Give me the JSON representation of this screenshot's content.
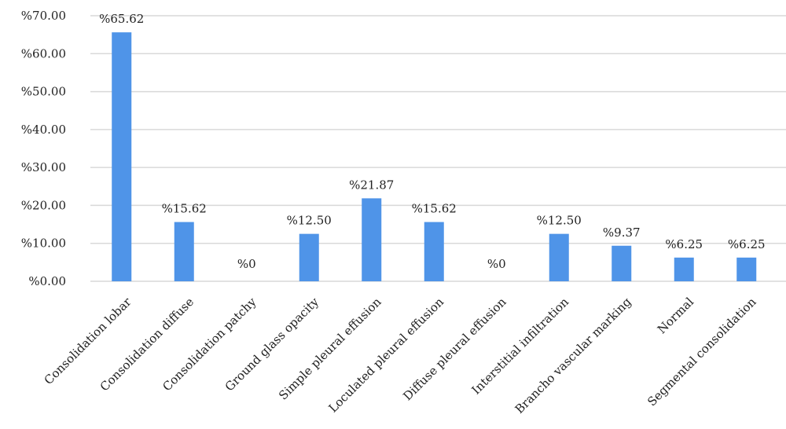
{
  "chart_data": {
    "type": "bar",
    "categories": [
      "Consolidation lobar",
      "Consolidation  diffuse",
      "Consolidation  patchy",
      "Ground glass opacity",
      "Simple pleural effusion",
      "Loculated pleural effusion",
      "Diffuse pleural effusion",
      "Interstitial infiltration",
      "Brancho vascular marking",
      "Normal",
      "Segmental consolidation"
    ],
    "values": [
      65.62,
      15.62,
      0,
      12.5,
      21.87,
      15.62,
      0,
      12.5,
      9.37,
      6.25,
      6.25
    ],
    "data_labels": [
      "%65.62",
      "%15.62",
      "%0",
      "%12.50",
      "%21.87",
      "%15.62",
      "%0",
      "%12.50",
      "%9.37",
      "%6.25",
      "%6.25"
    ],
    "y_ticks": [
      0,
      10,
      20,
      30,
      40,
      50,
      60,
      70
    ],
    "y_tick_labels": [
      "%0.00",
      "%10.00",
      "%20.00",
      "%30.00",
      "%40.00",
      "%50.00",
      "%60.00",
      "%70.00"
    ],
    "ylim": [
      0,
      70
    ],
    "grid": true,
    "legend": "none",
    "bar_color": "#4f94e8",
    "grid_color": "#d9d9d9"
  }
}
